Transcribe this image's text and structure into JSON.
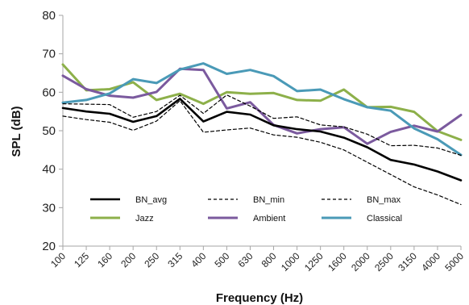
{
  "chart_data": {
    "type": "line",
    "xlabel": "Frequency (Hz)",
    "ylabel": "SPL (dB)",
    "ylim": [
      20,
      80
    ],
    "yticks": [
      20,
      30,
      40,
      50,
      60,
      70,
      80
    ],
    "grid": false,
    "legend_position": "bottom-left",
    "categories": [
      "100",
      "125",
      "160",
      "200",
      "250",
      "315",
      "400",
      "500",
      "630",
      "800",
      "1000",
      "1250",
      "1600",
      "2000",
      "2500",
      "3150",
      "4000",
      "5000"
    ],
    "series": [
      {
        "name": "BN_avg",
        "color": "#000000",
        "dash": "",
        "width": 2.6,
        "values": [
          55.9,
          55.0,
          54.4,
          52.3,
          53.8,
          58.3,
          52.4,
          54.9,
          54.2,
          51.4,
          50.4,
          49.8,
          48.2,
          45.7,
          42.4,
          41.2,
          39.4,
          37.1
        ]
      },
      {
        "name": "BN_min",
        "color": "#000000",
        "dash": "4,3",
        "width": 1.2,
        "values": [
          53.8,
          52.9,
          52.2,
          50.1,
          52.5,
          57.8,
          49.6,
          50.2,
          50.7,
          48.9,
          48.3,
          47.0,
          45.0,
          41.8,
          38.6,
          35.4,
          33.3,
          30.8
        ]
      },
      {
        "name": "BN_max",
        "color": "#000000",
        "dash": "4,3",
        "width": 1.2,
        "values": [
          57.0,
          56.9,
          56.8,
          53.5,
          55.0,
          59.2,
          54.5,
          59.3,
          56.4,
          53.2,
          53.6,
          51.5,
          51.0,
          49.1,
          46.1,
          46.2,
          45.5,
          43.6
        ]
      },
      {
        "name": "Jazz",
        "color": "#8db04a",
        "dash": "",
        "width": 3,
        "values": [
          67.2,
          60.5,
          60.8,
          62.6,
          58.0,
          59.6,
          57.0,
          60.0,
          59.6,
          59.8,
          58.0,
          57.8,
          60.7,
          56.1,
          56.2,
          54.9,
          49.9,
          47.6
        ]
      },
      {
        "name": "Ambient",
        "color": "#7b5a9e",
        "dash": "",
        "width": 3,
        "values": [
          64.3,
          60.8,
          59.1,
          58.6,
          60.1,
          66.1,
          65.8,
          55.8,
          57.4,
          51.5,
          49.3,
          50.4,
          50.9,
          46.6,
          49.7,
          51.3,
          49.8,
          54.1
        ]
      },
      {
        "name": "Classical",
        "color": "#4a9ab7",
        "dash": "",
        "width": 3,
        "values": [
          57.3,
          58.0,
          59.7,
          63.4,
          62.4,
          65.9,
          67.5,
          64.8,
          65.8,
          64.2,
          60.3,
          60.7,
          58.2,
          56.1,
          55.2,
          50.6,
          47.8,
          43.7
        ]
      }
    ],
    "legend_rows": [
      [
        "BN_avg",
        "BN_min",
        "BN_max"
      ],
      [
        "Jazz",
        "Ambient",
        "Classical"
      ]
    ]
  }
}
